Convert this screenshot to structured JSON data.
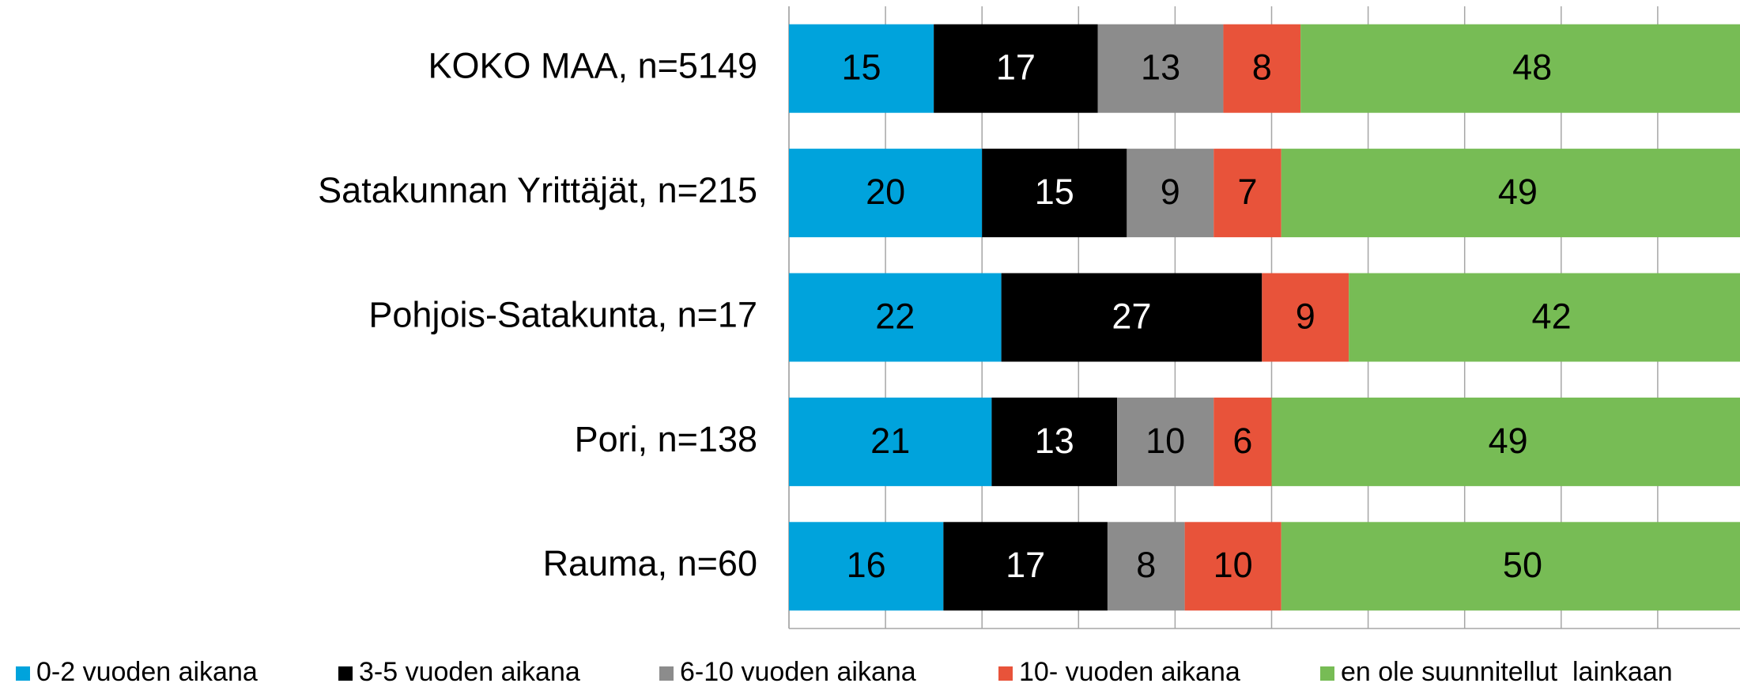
{
  "chart_data": {
    "type": "stacked-bar-horizontal",
    "categories": [
      "KOKO MAA, n=5149",
      "Satakunnan Yrittäjät, n=215",
      "Pohjois-Satakunta, n=17",
      "Pori, n=138",
      "Rauma, n=60"
    ],
    "series": [
      {
        "name": "0-2 vuoden aikana",
        "color": "#00a3dc",
        "values": [
          15,
          20,
          22,
          21,
          16
        ]
      },
      {
        "name": "3-5 vuoden aikana",
        "color": "#000000",
        "values": [
          17,
          15,
          27,
          13,
          17
        ]
      },
      {
        "name": "6-10 vuoden aikana",
        "color": "#8c8c8c",
        "values": [
          13,
          9,
          null,
          10,
          8
        ]
      },
      {
        "name": "10- vuoden aikana",
        "color": "#e8533a",
        "values": [
          8,
          7,
          9,
          6,
          10
        ]
      },
      {
        "name": "en ole suunnitellut  lainkaan",
        "color": "#77bc55",
        "values": [
          48,
          49,
          42,
          49,
          50
        ]
      }
    ],
    "xlim": [
      0,
      100
    ],
    "xticks": [
      0,
      10,
      20,
      30,
      40,
      50,
      60,
      70,
      80,
      90,
      100
    ],
    "grid": true
  }
}
